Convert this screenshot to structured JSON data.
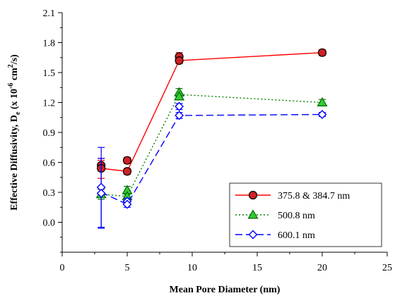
{
  "chart_data": {
    "type": "line",
    "xlabel": "Mean Pore Diameter (nm)",
    "ylabel": "Effective Diffusivity, D_e (x 10^-6 cm^2/s)",
    "ylabel_parts": {
      "main": "Effective Diffusivity, D",
      "sub": "e",
      "mid1": " (x 10",
      "sup1": "-6",
      "mid2": " cm",
      "sup2": "2",
      "end": "/s)"
    },
    "xlim": [
      0,
      25
    ],
    "ylim": [
      -0.3,
      2.1
    ],
    "x_ticks": [
      0,
      5,
      10,
      15,
      20,
      25
    ],
    "y_ticks": [
      0.0,
      0.3,
      0.6,
      0.9,
      1.2,
      1.5,
      1.8,
      2.1
    ],
    "x_tick_labels": [
      "0",
      "5",
      "10",
      "15",
      "20",
      "25"
    ],
    "y_tick_labels": [
      "0.0",
      "0.3",
      "0.6",
      "0.9",
      "1.2",
      "1.5",
      "1.8",
      "2.1"
    ],
    "grid": false,
    "legend_position": "bottom-right",
    "series": [
      {
        "name": "375.8 & 384.7 nm",
        "color": "#ff0000",
        "marker": "circle",
        "marker_fill": "#cc2222",
        "line_style": "solid",
        "points": [
          {
            "x": 3,
            "y": 0.57,
            "err": 0.05
          },
          {
            "x": 3,
            "y": 0.54,
            "err": 0.1
          },
          {
            "x": 5,
            "y": 0.62,
            "err": 0.03
          },
          {
            "x": 5,
            "y": 0.51,
            "err": 0.03
          },
          {
            "x": 9,
            "y": 1.66,
            "err": 0.04
          },
          {
            "x": 9,
            "y": 1.62,
            "err": 0.03
          },
          {
            "x": 20,
            "y": 1.7,
            "err": 0.03
          }
        ],
        "line": [
          {
            "x": 3,
            "y": 0.54
          },
          {
            "x": 5,
            "y": 0.51
          },
          {
            "x": 9,
            "y": 1.62
          },
          {
            "x": 20,
            "y": 1.7
          }
        ]
      },
      {
        "name": "500.8 nm",
        "color": "#008000",
        "marker": "triangle",
        "marker_fill": "#33cc33",
        "line_style": "dotted",
        "points": [
          {
            "x": 3,
            "y": 0.28,
            "err": 0.05
          },
          {
            "x": 5,
            "y": 0.32,
            "err": 0.04
          },
          {
            "x": 5,
            "y": 0.26,
            "err": 0.03
          },
          {
            "x": 9,
            "y": 1.3,
            "err": 0.04
          },
          {
            "x": 9,
            "y": 1.26,
            "err": 0.03
          },
          {
            "x": 20,
            "y": 1.2,
            "err": 0.03
          }
        ],
        "line": [
          {
            "x": 3,
            "y": 0.28
          },
          {
            "x": 5,
            "y": 0.26
          },
          {
            "x": 9,
            "y": 1.28
          },
          {
            "x": 20,
            "y": 1.2
          }
        ]
      },
      {
        "name": "600.1 nm",
        "color": "#0000ff",
        "marker": "diamond",
        "marker_fill": "#ffffff",
        "line_style": "dashed",
        "points": [
          {
            "x": 3,
            "y": 0.35,
            "err": 0.4
          },
          {
            "x": 3,
            "y": 0.29,
            "err": 0.35
          },
          {
            "x": 5,
            "y": 0.21,
            "err": 0.03
          },
          {
            "x": 5,
            "y": 0.18,
            "err": 0.03
          },
          {
            "x": 9,
            "y": 1.16,
            "err": 0.03
          },
          {
            "x": 9,
            "y": 1.07,
            "err": 0.03
          },
          {
            "x": 20,
            "y": 1.08,
            "err": 0.02
          }
        ],
        "line": [
          {
            "x": 3,
            "y": 0.3
          },
          {
            "x": 5,
            "y": 0.18
          },
          {
            "x": 9,
            "y": 1.07
          },
          {
            "x": 20,
            "y": 1.08
          }
        ]
      }
    ]
  }
}
